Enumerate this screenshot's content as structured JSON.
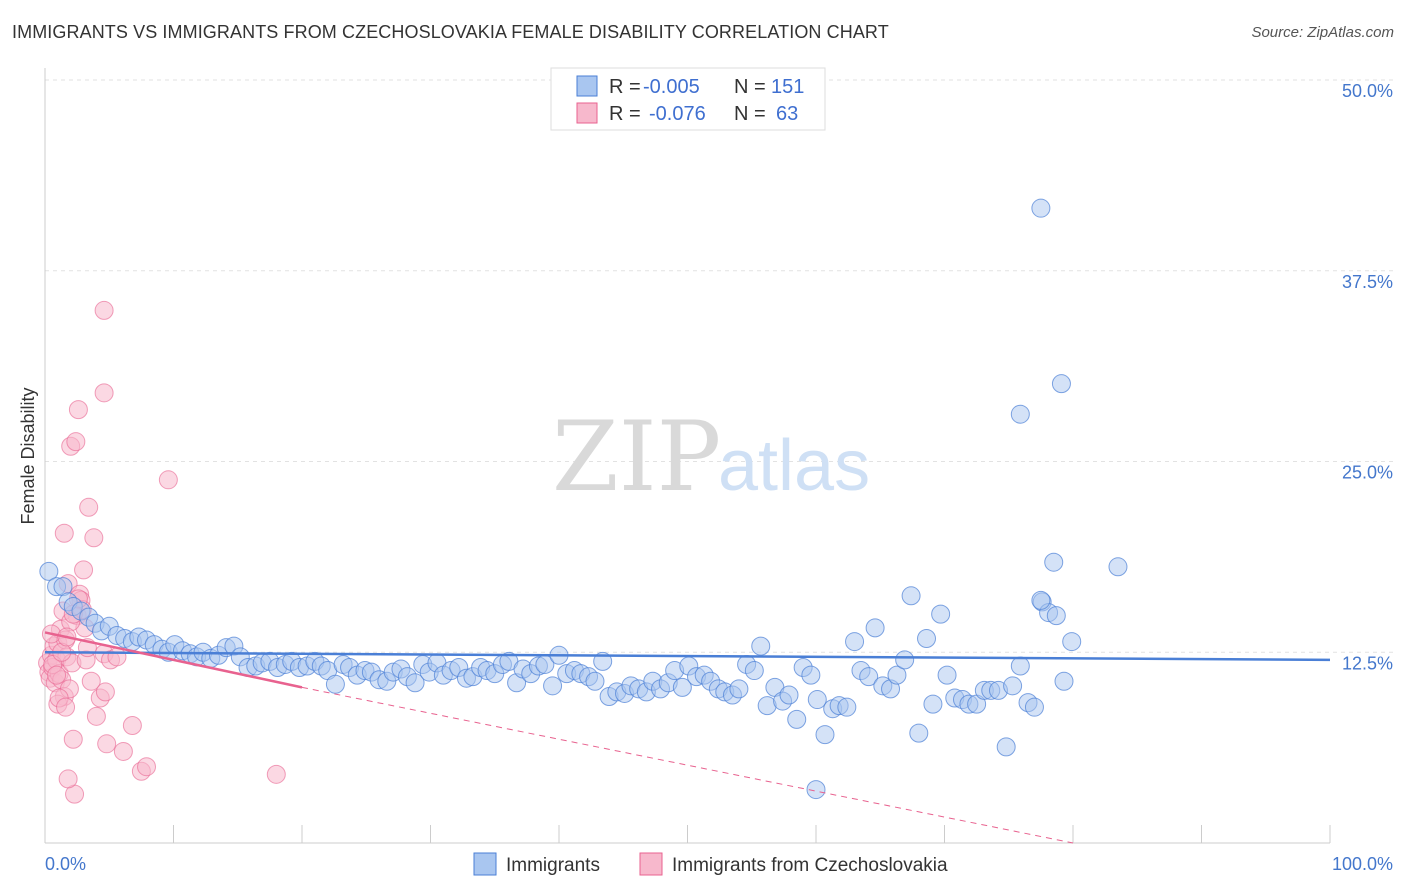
{
  "title": "IMMIGRANTS VS IMMIGRANTS FROM CZECHOSLOVAKIA FEMALE DISABILITY CORRELATION CHART",
  "source": "Source: ZipAtlas.com",
  "watermark": {
    "zip": "ZIP",
    "atlas": "atlas"
  },
  "colors": {
    "blue": "#4a7fd6",
    "blue_fill": "#a9c6f0",
    "pink": "#e8628f",
    "pink_fill": "#f7b8cc",
    "grid": "#e2e2e2"
  },
  "chart_data": {
    "type": "scatter",
    "ylabel": "Female Disability",
    "xlim": [
      0,
      100
    ],
    "ylim": [
      0,
      50
    ],
    "x_tick_labels": [
      {
        "value": 0,
        "label": "0.0%"
      },
      {
        "value": 100,
        "label": "100.0%"
      }
    ],
    "y_tick_labels": [
      {
        "value": 12.5,
        "label": "12.5%"
      },
      {
        "value": 25.0,
        "label": "25.0%"
      },
      {
        "value": 37.5,
        "label": "37.5%"
      },
      {
        "value": 50.0,
        "label": "50.0%"
      }
    ],
    "legend": [
      {
        "r_label": "R =",
        "r": "-0.005",
        "n_label": "N =",
        "n": "151"
      },
      {
        "r_label": "R =",
        "r": "-0.076",
        "n_label": "N =",
        "n": "63"
      }
    ],
    "series": [
      {
        "name": "Immigrants",
        "trend": {
          "x0": 0,
          "y0": 12.5,
          "x1": 100,
          "y1": 12.0
        },
        "points": [
          [
            0.3,
            17.8
          ],
          [
            0.9,
            16.8
          ],
          [
            1.4,
            16.8
          ],
          [
            1.8,
            15.8
          ],
          [
            2.2,
            15.5
          ],
          [
            2.8,
            15.2
          ],
          [
            3.4,
            14.8
          ],
          [
            3.9,
            14.4
          ],
          [
            4.4,
            13.9
          ],
          [
            5.0,
            14.2
          ],
          [
            5.6,
            13.6
          ],
          [
            6.2,
            13.4
          ],
          [
            6.8,
            13.2
          ],
          [
            7.3,
            13.5
          ],
          [
            7.9,
            13.3
          ],
          [
            8.5,
            13.0
          ],
          [
            9.1,
            12.7
          ],
          [
            9.6,
            12.5
          ],
          [
            10.1,
            13.0
          ],
          [
            10.7,
            12.6
          ],
          [
            11.3,
            12.4
          ],
          [
            11.8,
            12.2
          ],
          [
            12.3,
            12.5
          ],
          [
            12.9,
            12.1
          ],
          [
            13.5,
            12.3
          ],
          [
            14.1,
            12.8
          ],
          [
            14.7,
            12.9
          ],
          [
            15.2,
            12.2
          ],
          [
            15.8,
            11.5
          ],
          [
            16.4,
            11.6
          ],
          [
            16.9,
            11.8
          ],
          [
            17.5,
            11.9
          ],
          [
            18.1,
            11.5
          ],
          [
            18.7,
            11.7
          ],
          [
            19.2,
            11.9
          ],
          [
            19.8,
            11.5
          ],
          [
            20.4,
            11.6
          ],
          [
            21.0,
            11.9
          ],
          [
            21.5,
            11.6
          ],
          [
            22.0,
            11.3
          ],
          [
            22.6,
            10.4
          ],
          [
            23.2,
            11.7
          ],
          [
            23.7,
            11.5
          ],
          [
            24.3,
            11.0
          ],
          [
            24.9,
            11.3
          ],
          [
            25.4,
            11.2
          ],
          [
            26.0,
            10.7
          ],
          [
            26.6,
            10.6
          ],
          [
            27.1,
            11.2
          ],
          [
            27.7,
            11.4
          ],
          [
            28.2,
            10.9
          ],
          [
            28.8,
            10.5
          ],
          [
            29.4,
            11.7
          ],
          [
            29.9,
            11.2
          ],
          [
            30.5,
            11.8
          ],
          [
            31.0,
            11.0
          ],
          [
            31.6,
            11.3
          ],
          [
            32.2,
            11.5
          ],
          [
            32.8,
            10.8
          ],
          [
            33.3,
            10.9
          ],
          [
            33.9,
            11.5
          ],
          [
            34.4,
            11.3
          ],
          [
            35.0,
            11.1
          ],
          [
            35.6,
            11.7
          ],
          [
            36.1,
            11.9
          ],
          [
            36.7,
            10.5
          ],
          [
            37.2,
            11.4
          ],
          [
            37.8,
            11.1
          ],
          [
            38.4,
            11.6
          ],
          [
            38.9,
            11.7
          ],
          [
            39.5,
            10.3
          ],
          [
            40.0,
            12.3
          ],
          [
            40.6,
            11.1
          ],
          [
            41.2,
            11.3
          ],
          [
            41.7,
            11.1
          ],
          [
            42.3,
            10.9
          ],
          [
            42.8,
            10.6
          ],
          [
            43.4,
            11.9
          ],
          [
            43.9,
            9.6
          ],
          [
            44.5,
            9.9
          ],
          [
            45.1,
            9.8
          ],
          [
            45.6,
            10.3
          ],
          [
            46.2,
            10.1
          ],
          [
            46.8,
            9.9
          ],
          [
            47.3,
            10.6
          ],
          [
            47.9,
            10.1
          ],
          [
            48.5,
            10.5
          ],
          [
            49.0,
            11.3
          ],
          [
            49.6,
            10.2
          ],
          [
            50.1,
            11.6
          ],
          [
            50.7,
            10.9
          ],
          [
            51.3,
            11.0
          ],
          [
            51.8,
            10.6
          ],
          [
            52.4,
            10.1
          ],
          [
            52.9,
            9.9
          ],
          [
            53.5,
            9.7
          ],
          [
            54.0,
            10.1
          ],
          [
            54.6,
            11.7
          ],
          [
            55.2,
            11.3
          ],
          [
            55.7,
            12.9
          ],
          [
            56.2,
            9.0
          ],
          [
            56.8,
            10.2
          ],
          [
            57.4,
            9.3
          ],
          [
            57.9,
            9.7
          ],
          [
            58.5,
            8.1
          ],
          [
            59.0,
            11.5
          ],
          [
            59.6,
            11.0
          ],
          [
            60.1,
            9.4
          ],
          [
            60.7,
            7.1
          ],
          [
            61.3,
            8.8
          ],
          [
            61.8,
            9.0
          ],
          [
            62.4,
            8.9
          ],
          [
            63.0,
            13.2
          ],
          [
            63.5,
            11.3
          ],
          [
            64.1,
            10.9
          ],
          [
            64.6,
            14.1
          ],
          [
            65.2,
            10.3
          ],
          [
            65.8,
            10.1
          ],
          [
            66.3,
            11.0
          ],
          [
            66.9,
            12.0
          ],
          [
            67.4,
            16.2
          ],
          [
            68.0,
            7.2
          ],
          [
            68.6,
            13.4
          ],
          [
            69.1,
            9.1
          ],
          [
            69.7,
            15.0
          ],
          [
            70.2,
            11.0
          ],
          [
            70.8,
            9.5
          ],
          [
            71.4,
            9.4
          ],
          [
            71.9,
            9.1
          ],
          [
            72.5,
            9.1
          ],
          [
            73.1,
            10.0
          ],
          [
            73.6,
            10.0
          ],
          [
            74.2,
            10.0
          ],
          [
            74.8,
            6.3
          ],
          [
            75.3,
            10.3
          ],
          [
            75.9,
            11.6
          ],
          [
            76.5,
            9.2
          ],
          [
            77.0,
            8.9
          ],
          [
            77.6,
            15.8
          ],
          [
            78.1,
            15.1
          ],
          [
            78.7,
            14.9
          ],
          [
            79.3,
            10.6
          ],
          [
            79.9,
            13.2
          ],
          [
            77.5,
            15.9
          ],
          [
            60.0,
            3.5
          ],
          [
            75.9,
            28.1
          ],
          [
            77.5,
            41.6
          ],
          [
            79.1,
            30.1
          ],
          [
            78.5,
            18.4
          ],
          [
            83.5,
            18.1
          ]
        ]
      },
      {
        "name": "Immigrants from Czechoslovakia",
        "trend": {
          "x0": 0,
          "y0": 13.8,
          "x1": 20,
          "y1": 10.2
        },
        "trend_ext": {
          "x0": 20,
          "y0": 10.2,
          "x1": 80,
          "y1": 0
        },
        "points": [
          [
            0.2,
            11.8
          ],
          [
            0.3,
            11.2
          ],
          [
            0.4,
            10.8
          ],
          [
            0.5,
            12.3
          ],
          [
            0.6,
            11.5
          ],
          [
            0.7,
            12.9
          ],
          [
            0.8,
            10.5
          ],
          [
            0.9,
            12.0
          ],
          [
            1.0,
            13.1
          ],
          [
            1.1,
            11.1
          ],
          [
            1.2,
            14.0
          ],
          [
            1.3,
            10.7
          ],
          [
            1.4,
            15.2
          ],
          [
            1.5,
            9.6
          ],
          [
            1.6,
            13.3
          ],
          [
            1.7,
            12.2
          ],
          [
            1.8,
            17.0
          ],
          [
            1.9,
            10.1
          ],
          [
            2.0,
            26.0
          ],
          [
            2.1,
            11.8
          ],
          [
            2.2,
            6.8
          ],
          [
            2.3,
            3.2
          ],
          [
            2.4,
            26.3
          ],
          [
            2.5,
            14.9
          ],
          [
            2.6,
            28.4
          ],
          [
            2.7,
            16.3
          ],
          [
            2.8,
            15.9
          ],
          [
            2.9,
            15.3
          ],
          [
            3.0,
            17.9
          ],
          [
            3.1,
            14.1
          ],
          [
            3.2,
            12.0
          ],
          [
            3.4,
            22.0
          ],
          [
            3.6,
            10.6
          ],
          [
            3.8,
            20.0
          ],
          [
            4.0,
            8.3
          ],
          [
            4.3,
            9.5
          ],
          [
            4.6,
            12.4
          ],
          [
            4.6,
            29.5
          ],
          [
            4.6,
            34.9
          ],
          [
            4.7,
            9.9
          ],
          [
            4.8,
            6.5
          ],
          [
            5.1,
            12.0
          ],
          [
            5.6,
            12.2
          ],
          [
            6.1,
            6.0
          ],
          [
            6.8,
            7.7
          ],
          [
            7.5,
            4.7
          ],
          [
            7.9,
            5.0
          ],
          [
            9.6,
            23.8
          ],
          [
            18.0,
            4.5
          ],
          [
            1.5,
            20.3
          ],
          [
            1.0,
            9.1
          ],
          [
            1.1,
            9.5
          ],
          [
            1.8,
            4.2
          ],
          [
            2.0,
            14.5
          ],
          [
            1.6,
            8.9
          ],
          [
            0.5,
            13.7
          ],
          [
            0.6,
            11.7
          ],
          [
            0.9,
            11.0
          ],
          [
            1.3,
            12.5
          ],
          [
            1.7,
            13.5
          ],
          [
            2.2,
            15.0
          ],
          [
            2.6,
            16.0
          ],
          [
            3.3,
            12.8
          ]
        ]
      }
    ]
  },
  "bottom_legend": [
    {
      "label": "Immigrants"
    },
    {
      "label": "Immigrants from Czechoslovakia"
    }
  ]
}
